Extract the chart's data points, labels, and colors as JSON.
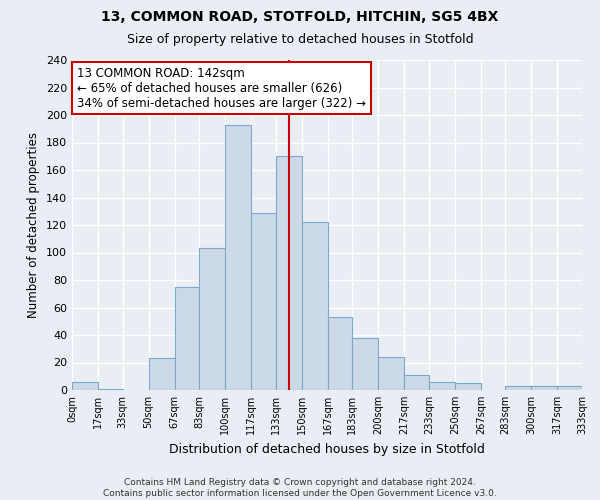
{
  "title": "13, COMMON ROAD, STOTFOLD, HITCHIN, SG5 4BX",
  "subtitle": "Size of property relative to detached houses in Stotfold",
  "xlabel": "Distribution of detached houses by size in Stotfold",
  "ylabel": "Number of detached properties",
  "bin_edges": [
    0,
    17,
    33,
    50,
    67,
    83,
    100,
    117,
    133,
    150,
    167,
    183,
    200,
    217,
    233,
    250,
    267,
    283,
    300,
    317,
    333
  ],
  "bin_labels": [
    "0sqm",
    "17sqm",
    "33sqm",
    "50sqm",
    "67sqm",
    "83sqm",
    "100sqm",
    "117sqm",
    "133sqm",
    "150sqm",
    "167sqm",
    "183sqm",
    "200sqm",
    "217sqm",
    "233sqm",
    "250sqm",
    "267sqm",
    "283sqm",
    "300sqm",
    "317sqm",
    "333sqm"
  ],
  "counts": [
    6,
    1,
    0,
    23,
    75,
    103,
    193,
    129,
    170,
    122,
    53,
    38,
    24,
    11,
    6,
    5,
    0,
    3,
    3,
    3
  ],
  "bar_color": "#ccd9e8",
  "bar_edge_color": "#7fa8c8",
  "property_line_x": 142,
  "property_line_color": "#cc0000",
  "annotation_line1": "13 COMMON ROAD: 142sqm",
  "annotation_line2": "← 65% of detached houses are smaller (626)",
  "annotation_line3": "34% of semi-detached houses are larger (322) →",
  "annotation_box_color": "#ffffff",
  "annotation_box_edge_color": "#cc0000",
  "ylim": [
    0,
    240
  ],
  "yticks": [
    0,
    20,
    40,
    60,
    80,
    100,
    120,
    140,
    160,
    180,
    200,
    220,
    240
  ],
  "footnote_line1": "Contains HM Land Registry data © Crown copyright and database right 2024.",
  "footnote_line2": "Contains public sector information licensed under the Open Government Licence v3.0.",
  "bg_color": "#e8eef4",
  "plot_bg_color": "#e8eef4",
  "grid_color": "#ffffff"
}
